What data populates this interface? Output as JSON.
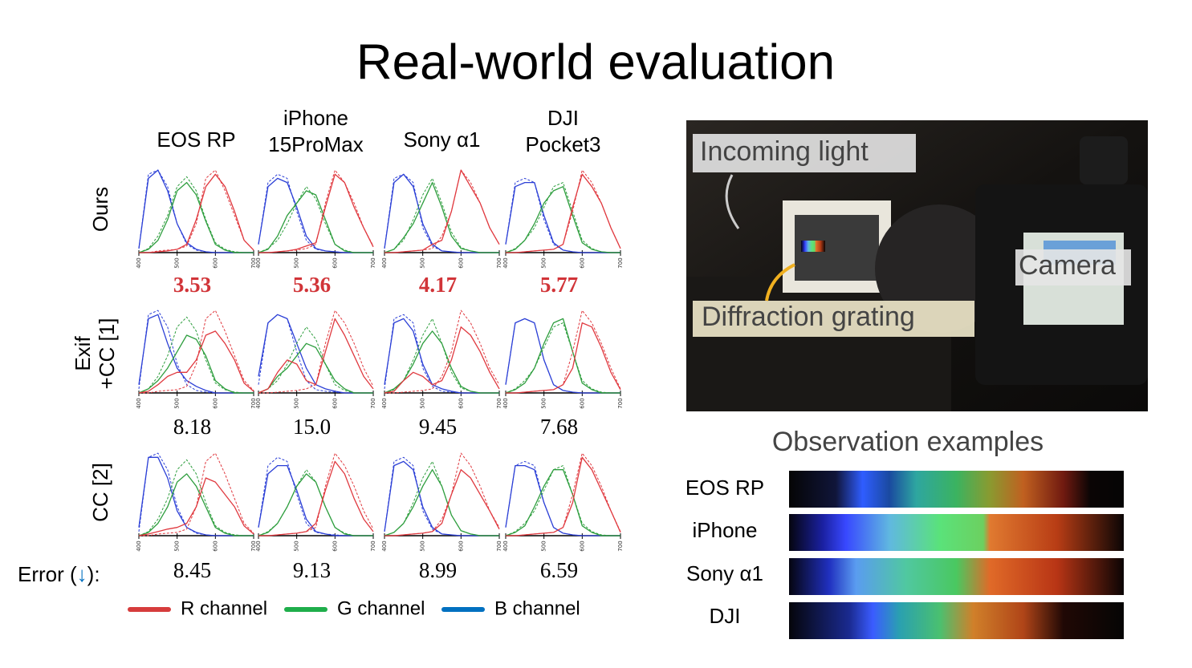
{
  "title": "Real-world evaluation",
  "cameras": [
    [
      "EOS RP"
    ],
    [
      "iPhone",
      "15ProMax"
    ],
    [
      "Sony α1"
    ],
    [
      "DJI",
      "Pocket3"
    ]
  ],
  "plot": {
    "x": [
      400,
      425,
      450,
      475,
      500,
      525,
      550,
      575,
      600,
      625,
      650,
      675,
      700
    ],
    "xticks": [
      400,
      500,
      600,
      700
    ],
    "xlim": [
      400,
      700
    ],
    "ylim": [
      0,
      1.05
    ],
    "colors": {
      "R": "#e0393f",
      "G": "#2e9e3e",
      "B": "#2b3fd6"
    }
  },
  "references": [
    {
      "R": [
        0,
        0,
        0.02,
        0.03,
        0.04,
        0.08,
        0.35,
        0.9,
        1.0,
        0.75,
        0.45,
        0.15,
        0.03
      ],
      "G": [
        0,
        0.05,
        0.2,
        0.45,
        0.8,
        0.92,
        0.75,
        0.4,
        0.12,
        0.04,
        0.01,
        0,
        0
      ],
      "B": [
        0.05,
        0.95,
        1.0,
        0.8,
        0.35,
        0.1,
        0.03,
        0.01,
        0,
        0,
        0,
        0,
        0
      ]
    },
    {
      "R": [
        0,
        0,
        0.01,
        0.02,
        0.03,
        0.05,
        0.1,
        0.6,
        1.0,
        0.85,
        0.6,
        0.3,
        0.08
      ],
      "G": [
        0,
        0.05,
        0.15,
        0.35,
        0.6,
        0.8,
        0.65,
        0.35,
        0.1,
        0.03,
        0,
        0,
        0
      ],
      "B": [
        0.1,
        0.85,
        0.95,
        0.9,
        0.5,
        0.15,
        0.04,
        0.02,
        0.01,
        0,
        0,
        0,
        0
      ]
    },
    {
      "R": [
        0,
        0,
        0.01,
        0.02,
        0.03,
        0.05,
        0.2,
        0.5,
        1.0,
        0.85,
        0.6,
        0.3,
        0.1
      ],
      "G": [
        0,
        0.04,
        0.15,
        0.4,
        0.7,
        0.9,
        0.6,
        0.25,
        0.06,
        0.02,
        0,
        0,
        0
      ],
      "B": [
        0.05,
        0.9,
        0.95,
        0.85,
        0.3,
        0.08,
        0.02,
        0.01,
        0,
        0,
        0,
        0,
        0
      ]
    },
    {
      "R": [
        0,
        0,
        0.01,
        0.02,
        0.03,
        0.04,
        0.1,
        0.5,
        1.0,
        0.85,
        0.6,
        0.3,
        0.05
      ],
      "G": [
        0,
        0.05,
        0.15,
        0.3,
        0.55,
        0.8,
        0.85,
        0.5,
        0.15,
        0.05,
        0.01,
        0,
        0
      ],
      "B": [
        0.1,
        0.85,
        0.9,
        0.85,
        0.4,
        0.1,
        0.03,
        0.01,
        0,
        0,
        0,
        0,
        0
      ]
    }
  ],
  "methods": [
    {
      "label": [
        "Ours"
      ],
      "errors": [
        "3.53",
        "5.36",
        "4.17",
        "5.77"
      ],
      "panels": [
        {
          "R": [
            0,
            0,
            0.01,
            0.02,
            0.04,
            0.1,
            0.4,
            0.8,
            0.95,
            0.8,
            0.5,
            0.15,
            0.03
          ],
          "G": [
            0,
            0.04,
            0.15,
            0.4,
            0.75,
            0.85,
            0.7,
            0.38,
            0.1,
            0.03,
            0,
            0,
            0
          ],
          "B": [
            0.05,
            0.9,
            1.0,
            0.75,
            0.35,
            0.12,
            0.04,
            0.01,
            0,
            0,
            0,
            0,
            0
          ]
        },
        {
          "R": [
            0,
            0,
            0.01,
            0.02,
            0.04,
            0.08,
            0.12,
            0.55,
            0.95,
            0.85,
            0.55,
            0.3,
            0.07
          ],
          "G": [
            0,
            0.04,
            0.2,
            0.45,
            0.6,
            0.75,
            0.7,
            0.4,
            0.1,
            0.02,
            0,
            0,
            0
          ],
          "B": [
            0.1,
            0.8,
            0.9,
            0.85,
            0.55,
            0.2,
            0.05,
            0.02,
            0.01,
            0,
            0,
            0,
            0
          ]
        },
        {
          "R": [
            0,
            0,
            0.01,
            0.02,
            0.03,
            0.1,
            0.15,
            0.5,
            1.0,
            0.8,
            0.6,
            0.3,
            0.1
          ],
          "G": [
            0,
            0.04,
            0.18,
            0.35,
            0.6,
            0.85,
            0.55,
            0.2,
            0.05,
            0.02,
            0,
            0,
            0
          ],
          "B": [
            0.05,
            0.85,
            0.95,
            0.8,
            0.35,
            0.1,
            0.02,
            0.01,
            0,
            0,
            0,
            0,
            0
          ]
        },
        {
          "R": [
            0,
            0,
            0.01,
            0.02,
            0.03,
            0.04,
            0.1,
            0.55,
            0.95,
            0.8,
            0.6,
            0.3,
            0.05
          ],
          "G": [
            0,
            0.04,
            0.15,
            0.35,
            0.6,
            0.75,
            0.8,
            0.45,
            0.12,
            0.04,
            0.01,
            0,
            0
          ],
          "B": [
            0.1,
            0.8,
            0.85,
            0.85,
            0.45,
            0.12,
            0.03,
            0.01,
            0,
            0,
            0,
            0,
            0
          ]
        }
      ]
    },
    {
      "label": [
        "Exif",
        "+CC [1]"
      ],
      "errors": [
        "8.18",
        "15.0",
        "9.45",
        "7.68"
      ],
      "panels": [
        {
          "R": [
            0,
            0.02,
            0.1,
            0.2,
            0.25,
            0.25,
            0.4,
            0.7,
            0.75,
            0.6,
            0.4,
            0.12,
            0.02
          ],
          "G": [
            0,
            0.05,
            0.15,
            0.3,
            0.5,
            0.7,
            0.65,
            0.45,
            0.15,
            0.05,
            0,
            0,
            0
          ],
          "B": [
            0.1,
            0.9,
            0.95,
            0.6,
            0.3,
            0.15,
            0.08,
            0.03,
            0,
            0,
            0,
            0,
            0
          ]
        },
        {
          "R": [
            0,
            0.05,
            0.25,
            0.4,
            0.35,
            0.15,
            0.1,
            0.5,
            0.9,
            0.7,
            0.45,
            0.2,
            0.05
          ],
          "G": [
            0,
            0.05,
            0.2,
            0.3,
            0.45,
            0.6,
            0.55,
            0.35,
            0.15,
            0.05,
            0,
            0,
            0
          ],
          "B": [
            0.2,
            0.85,
            0.95,
            0.9,
            0.6,
            0.3,
            0.1,
            0.05,
            0.02,
            0,
            0,
            0,
            0
          ]
        },
        {
          "R": [
            0,
            0.02,
            0.15,
            0.25,
            0.2,
            0.1,
            0.15,
            0.4,
            0.8,
            0.7,
            0.5,
            0.25,
            0.05
          ],
          "G": [
            0,
            0.05,
            0.15,
            0.35,
            0.6,
            0.75,
            0.6,
            0.3,
            0.08,
            0.02,
            0,
            0,
            0
          ],
          "B": [
            0.1,
            0.85,
            0.9,
            0.75,
            0.35,
            0.1,
            0.05,
            0.02,
            0,
            0,
            0,
            0,
            0
          ]
        },
        {
          "R": [
            0,
            0,
            0.01,
            0.02,
            0.03,
            0.04,
            0.1,
            0.3,
            0.85,
            0.8,
            0.55,
            0.25,
            0.04
          ],
          "G": [
            0,
            0.04,
            0.12,
            0.3,
            0.6,
            0.85,
            0.9,
            0.5,
            0.12,
            0.04,
            0,
            0,
            0
          ],
          "B": [
            0.1,
            0.85,
            0.9,
            0.85,
            0.4,
            0.1,
            0.03,
            0.01,
            0,
            0,
            0,
            0,
            0
          ]
        }
      ]
    },
    {
      "label": [
        "CC [2]"
      ],
      "errors": [
        "8.45",
        "9.13",
        "8.99",
        "6.59"
      ],
      "panels": [
        {
          "R": [
            0,
            0.02,
            0.05,
            0.08,
            0.1,
            0.15,
            0.35,
            0.7,
            0.65,
            0.5,
            0.35,
            0.12,
            0.02
          ],
          "G": [
            0,
            0.04,
            0.15,
            0.35,
            0.65,
            0.75,
            0.6,
            0.35,
            0.1,
            0.03,
            0,
            0,
            0
          ],
          "B": [
            0.1,
            0.95,
            0.95,
            0.7,
            0.3,
            0.1,
            0.04,
            0.01,
            0,
            0,
            0,
            0,
            0
          ]
        },
        {
          "R": [
            0,
            0,
            0.01,
            0.02,
            0.03,
            0.05,
            0.15,
            0.55,
            0.9,
            0.75,
            0.45,
            0.2,
            0.05
          ],
          "G": [
            0,
            0.04,
            0.15,
            0.35,
            0.6,
            0.75,
            0.65,
            0.35,
            0.1,
            0.02,
            0,
            0,
            0
          ],
          "B": [
            0.1,
            0.75,
            0.85,
            0.85,
            0.55,
            0.2,
            0.05,
            0.02,
            0,
            0,
            0,
            0,
            0
          ]
        },
        {
          "R": [
            0,
            0,
            0.01,
            0.02,
            0.03,
            0.05,
            0.15,
            0.5,
            0.8,
            0.7,
            0.5,
            0.3,
            0.08
          ],
          "G": [
            0,
            0.04,
            0.15,
            0.35,
            0.6,
            0.8,
            0.6,
            0.25,
            0.06,
            0.02,
            0,
            0,
            0
          ],
          "B": [
            0.05,
            0.85,
            0.9,
            0.8,
            0.35,
            0.1,
            0.02,
            0.01,
            0,
            0,
            0,
            0,
            0
          ]
        },
        {
          "R": [
            0,
            0,
            0.01,
            0.02,
            0.03,
            0.04,
            0.1,
            0.4,
            0.95,
            0.8,
            0.55,
            0.3,
            0.04
          ],
          "G": [
            0,
            0.04,
            0.12,
            0.35,
            0.6,
            0.8,
            0.8,
            0.5,
            0.12,
            0.04,
            0,
            0,
            0
          ],
          "B": [
            0.1,
            0.85,
            0.85,
            0.8,
            0.4,
            0.1,
            0.03,
            0.01,
            0,
            0,
            0,
            0,
            0
          ]
        }
      ]
    }
  ],
  "error_label": [
    "Error (",
    "↓",
    "):"
  ],
  "legend": [
    {
      "name": "R channel",
      "color": "#d63c3c"
    },
    {
      "name": "G channel",
      "color": "#1fae4b"
    },
    {
      "name": "B channel",
      "color": "#0070c0"
    }
  ],
  "photo_labels": [
    "Incoming light",
    "Diffraction grating",
    "Camera"
  ],
  "observation": {
    "title": "Observation examples",
    "labels": [
      "EOS RP",
      "iPhone",
      "Sony α1",
      "DJI"
    ]
  }
}
